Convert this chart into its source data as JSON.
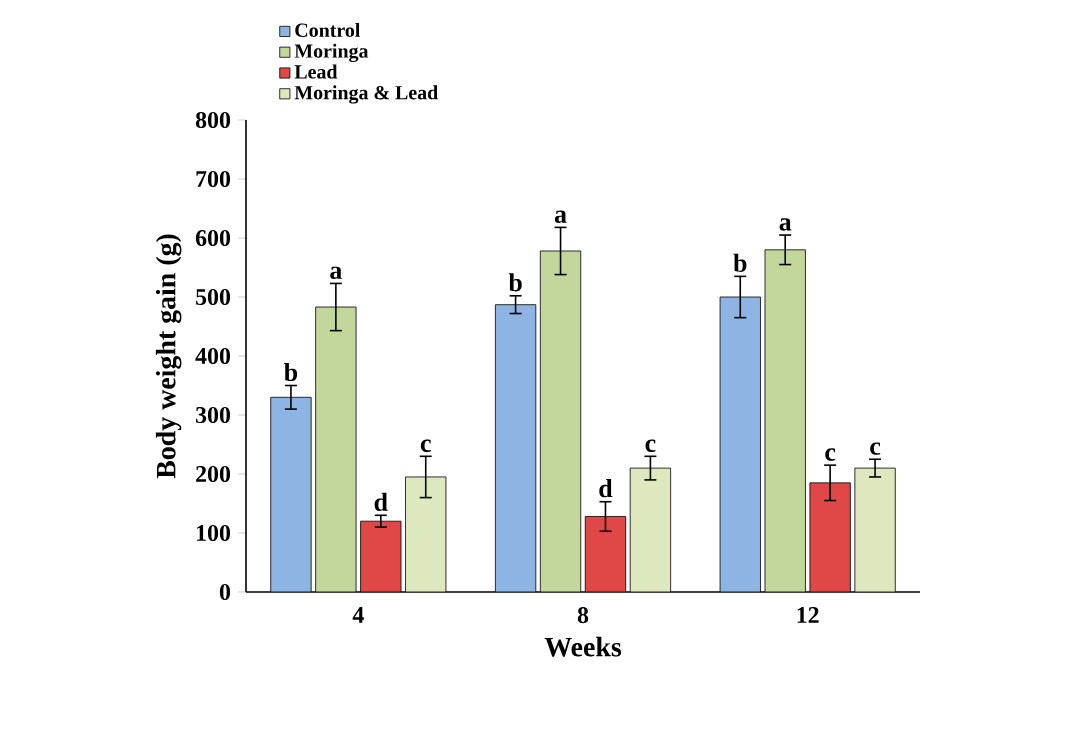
{
  "chart_data": {
    "type": "bar",
    "xlabel": "Weeks",
    "ylabel": "Body weight gain (g)",
    "categories": [
      "4",
      "8",
      "12"
    ],
    "series": [
      {
        "name": "Control",
        "color": "#8db4e2",
        "values": [
          330,
          487,
          500
        ],
        "errors": [
          20,
          15,
          35
        ]
      },
      {
        "name": "Moringa",
        "color": "#c3d69b",
        "values": [
          483,
          578,
          580
        ],
        "errors": [
          40,
          40,
          25
        ]
      },
      {
        "name": "Lead",
        "color": "#e04848",
        "values": [
          120,
          128,
          185
        ],
        "errors": [
          10,
          25,
          30
        ]
      },
      {
        "name": "Moringa & Lead",
        "color": "#dde8bf",
        "values": [
          195,
          210,
          210
        ],
        "errors": [
          35,
          20,
          15
        ]
      }
    ],
    "ylim": [
      0,
      800
    ],
    "yticks": [
      0,
      100,
      200,
      300,
      400,
      500,
      600,
      700,
      800
    ],
    "legend": "top left",
    "annotations": [
      {
        "text": "b",
        "x": "4",
        "y": 330
      },
      {
        "text": "a",
        "x": "4",
        "y": 483
      },
      {
        "text": "d",
        "x": "4",
        "y": 120
      },
      {
        "text": "c",
        "x": "4",
        "y": 195
      },
      {
        "text": "b",
        "x": "8",
        "y": 487
      },
      {
        "text": "a",
        "x": "8",
        "y": 578
      },
      {
        "text": "d",
        "x": "8",
        "y": 128
      },
      {
        "text": "c",
        "x": "8",
        "y": 210
      },
      {
        "text": "b",
        "x": "12",
        "y": 500
      },
      {
        "text": "a",
        "x": "12",
        "y": 580
      },
      {
        "text": "c",
        "x": "12",
        "y": 185
      },
      {
        "text": "c",
        "x": "12",
        "y": 210
      }
    ]
  }
}
